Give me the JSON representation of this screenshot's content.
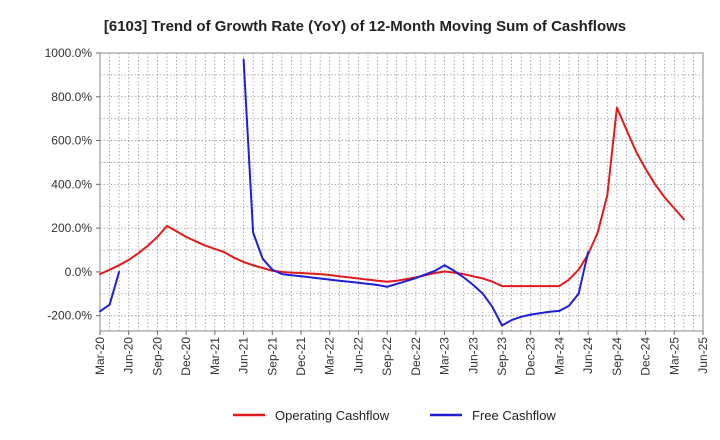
{
  "chart_data": {
    "type": "line",
    "title": "[6103]  Trend of Growth Rate (YoY) of 12-Month Moving Sum of Cashflows",
    "xlabel": "",
    "ylabel": "",
    "ylim": [
      -270,
      1000
    ],
    "y_ticks": [
      {
        "value": 1000,
        "label": "1000.0%"
      },
      {
        "value": 800,
        "label": "800.0%"
      },
      {
        "value": 600,
        "label": "600.0%"
      },
      {
        "value": 400,
        "label": "400.0%"
      },
      {
        "value": 200,
        "label": "200.0%"
      },
      {
        "value": 0,
        "label": "0.0%"
      },
      {
        "value": -200,
        "label": "-200.0%"
      }
    ],
    "x_range": [
      "2020-03",
      "2025-06"
    ],
    "x_ticks": [
      "Mar-20",
      "Jun-20",
      "Sep-20",
      "Dec-20",
      "Mar-21",
      "Jun-21",
      "Sep-21",
      "Dec-21",
      "Mar-22",
      "Jun-22",
      "Sep-22",
      "Dec-22",
      "Mar-23",
      "Jun-23",
      "Sep-23",
      "Dec-23",
      "Mar-24",
      "Jun-24",
      "Sep-24",
      "Dec-24",
      "Mar-25",
      "Jun-25"
    ],
    "grid": true,
    "legend_position": "bottom",
    "series": [
      {
        "name": "Operating Cashflow",
        "color": "#e31a1c",
        "points": [
          [
            "2020-03",
            -10
          ],
          [
            "2020-04",
            10
          ],
          [
            "2020-05",
            30
          ],
          [
            "2020-06",
            55
          ],
          [
            "2020-07",
            85
          ],
          [
            "2020-08",
            120
          ],
          [
            "2020-09",
            160
          ],
          [
            "2020-10",
            210
          ],
          [
            "2020-11",
            185
          ],
          [
            "2020-12",
            160
          ],
          [
            "2021-01",
            140
          ],
          [
            "2021-02",
            120
          ],
          [
            "2021-03",
            105
          ],
          [
            "2021-04",
            90
          ],
          [
            "2021-05",
            65
          ],
          [
            "2021-06",
            45
          ],
          [
            "2021-07",
            30
          ],
          [
            "2021-08",
            18
          ],
          [
            "2021-09",
            5
          ],
          [
            "2021-10",
            0
          ],
          [
            "2021-11",
            -3
          ],
          [
            "2021-12",
            -5
          ],
          [
            "2022-01",
            -8
          ],
          [
            "2022-02",
            -10
          ],
          [
            "2022-03",
            -14
          ],
          [
            "2022-04",
            -20
          ],
          [
            "2022-05",
            -25
          ],
          [
            "2022-06",
            -30
          ],
          [
            "2022-07",
            -35
          ],
          [
            "2022-08",
            -40
          ],
          [
            "2022-09",
            -45
          ],
          [
            "2022-10",
            -40
          ],
          [
            "2022-11",
            -33
          ],
          [
            "2022-12",
            -25
          ],
          [
            "2023-01",
            -15
          ],
          [
            "2023-02",
            -5
          ],
          [
            "2023-03",
            2
          ],
          [
            "2023-04",
            -3
          ],
          [
            "2023-05",
            -10
          ],
          [
            "2023-06",
            -20
          ],
          [
            "2023-07",
            -30
          ],
          [
            "2023-08",
            -45
          ],
          [
            "2023-09",
            -65
          ],
          [
            "2023-10",
            -65
          ],
          [
            "2023-11",
            -65
          ],
          [
            "2023-12",
            -65
          ],
          [
            "2024-01",
            -65
          ],
          [
            "2024-02",
            -65
          ],
          [
            "2024-03",
            -65
          ],
          [
            "2024-04",
            -35
          ],
          [
            "2024-05",
            10
          ],
          [
            "2024-06",
            80
          ],
          [
            "2024-07",
            180
          ],
          [
            "2024-08",
            350
          ],
          [
            "2024-09",
            750
          ],
          [
            "2024-10",
            650
          ],
          [
            "2024-11",
            550
          ],
          [
            "2024-12",
            470
          ],
          [
            "2025-01",
            400
          ],
          [
            "2025-02",
            340
          ],
          [
            "2025-03",
            290
          ],
          [
            "2025-04",
            240
          ]
        ]
      },
      {
        "name": "Free Cashflow",
        "color": "#1f1fd6",
        "segments": [
          [
            [
              "2020-03",
              -180
            ],
            [
              "2020-04",
              -150
            ],
            [
              "2020-05",
              0
            ]
          ],
          [
            [
              "2021-06",
              970
            ],
            [
              "2021-07",
              180
            ],
            [
              "2021-08",
              60
            ],
            [
              "2021-09",
              10
            ],
            [
              "2021-10",
              -10
            ],
            [
              "2021-11",
              -15
            ],
            [
              "2021-12",
              -20
            ],
            [
              "2022-01",
              -25
            ],
            [
              "2022-02",
              -30
            ],
            [
              "2022-03",
              -35
            ],
            [
              "2022-04",
              -40
            ],
            [
              "2022-05",
              -45
            ],
            [
              "2022-06",
              -50
            ],
            [
              "2022-07",
              -55
            ],
            [
              "2022-08",
              -60
            ],
            [
              "2022-09",
              -68
            ],
            [
              "2022-10",
              -55
            ],
            [
              "2022-11",
              -42
            ],
            [
              "2022-12",
              -28
            ],
            [
              "2023-01",
              -12
            ],
            [
              "2023-02",
              5
            ],
            [
              "2023-03",
              30
            ],
            [
              "2023-04",
              5
            ],
            [
              "2023-05",
              -25
            ],
            [
              "2023-06",
              -60
            ],
            [
              "2023-07",
              -100
            ],
            [
              "2023-08",
              -160
            ],
            [
              "2023-09",
              -245
            ],
            [
              "2023-10",
              -220
            ],
            [
              "2023-11",
              -205
            ],
            [
              "2023-12",
              -195
            ],
            [
              "2024-01",
              -188
            ],
            [
              "2024-02",
              -182
            ],
            [
              "2024-03",
              -178
            ],
            [
              "2024-04",
              -155
            ],
            [
              "2024-05",
              -100
            ],
            [
              "2024-06",
              90
            ]
          ]
        ]
      }
    ]
  }
}
